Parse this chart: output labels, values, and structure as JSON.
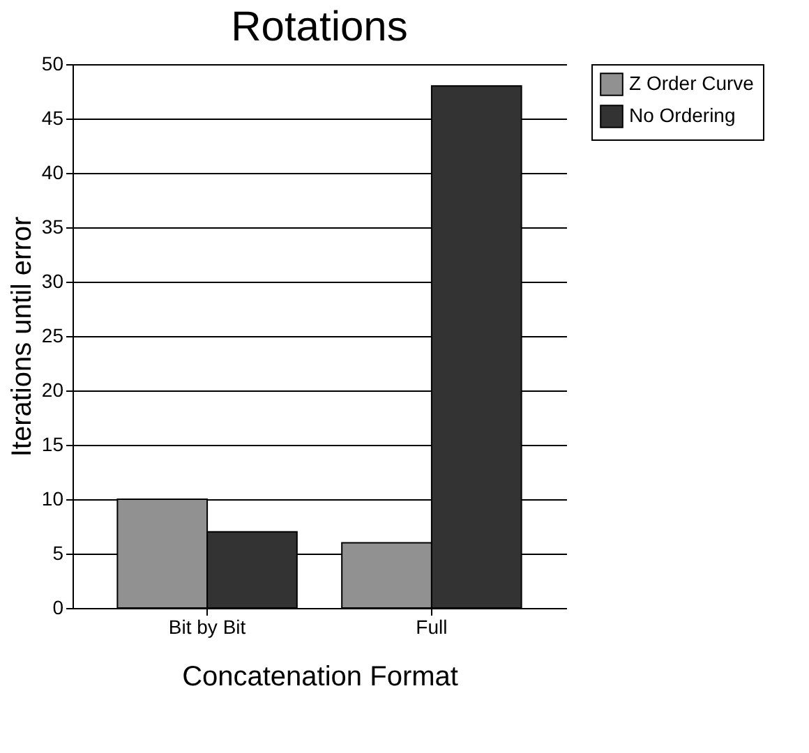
{
  "chart_data": {
    "type": "bar",
    "title": "Rotations",
    "xlabel": "Concatenation Format",
    "ylabel": "Iterations until error",
    "categories": [
      "Bit by Bit",
      "Full"
    ],
    "series": [
      {
        "name": "Z Order Curve",
        "color": "#919191",
        "values": [
          10,
          6
        ]
      },
      {
        "name": "No Ordering",
        "color": "#333333",
        "values": [
          7,
          48
        ]
      }
    ],
    "ylim": [
      0,
      50
    ],
    "yticks": [
      0,
      5,
      10,
      15,
      20,
      25,
      30,
      35,
      40,
      45,
      50
    ],
    "grid": "y",
    "legend": "right"
  }
}
